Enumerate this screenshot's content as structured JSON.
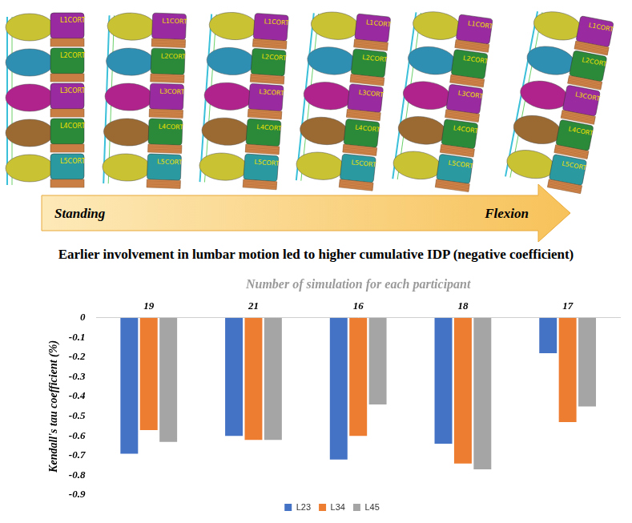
{
  "diagram": {
    "arrow_start": "Standing",
    "arrow_end": "Flexion",
    "model_labels": [
      "L1CORT",
      "L2CORT",
      "L3CORT",
      "L4CORT",
      "L5CORT"
    ]
  },
  "heading": "Earlier involvement in lumbar motion led to higher cumulative IDP (negative coefficient)",
  "chart_data": {
    "type": "bar",
    "x_label": "Number of simulation for each participant",
    "y_label": "Kendall's tau coefficient (%)",
    "categories": [
      "19",
      "21",
      "16",
      "18",
      "17"
    ],
    "series": [
      {
        "name": "L23",
        "color": "#4472c4",
        "values": [
          -0.69,
          -0.6,
          -0.72,
          -0.64,
          -0.18
        ]
      },
      {
        "name": "L34",
        "color": "#ed7d31",
        "values": [
          -0.57,
          -0.62,
          -0.6,
          -0.74,
          -0.53
        ]
      },
      {
        "name": "L45",
        "color": "#a5a5a5",
        "values": [
          -0.63,
          -0.62,
          -0.44,
          -0.77,
          -0.45
        ]
      }
    ],
    "ylim": [
      -0.9,
      0
    ],
    "yticks": [
      -0.9,
      -0.8,
      -0.7,
      -0.6,
      -0.5,
      -0.4,
      -0.3,
      -0.2,
      -0.1,
      0
    ],
    "grid": false,
    "legend": "bottom"
  }
}
